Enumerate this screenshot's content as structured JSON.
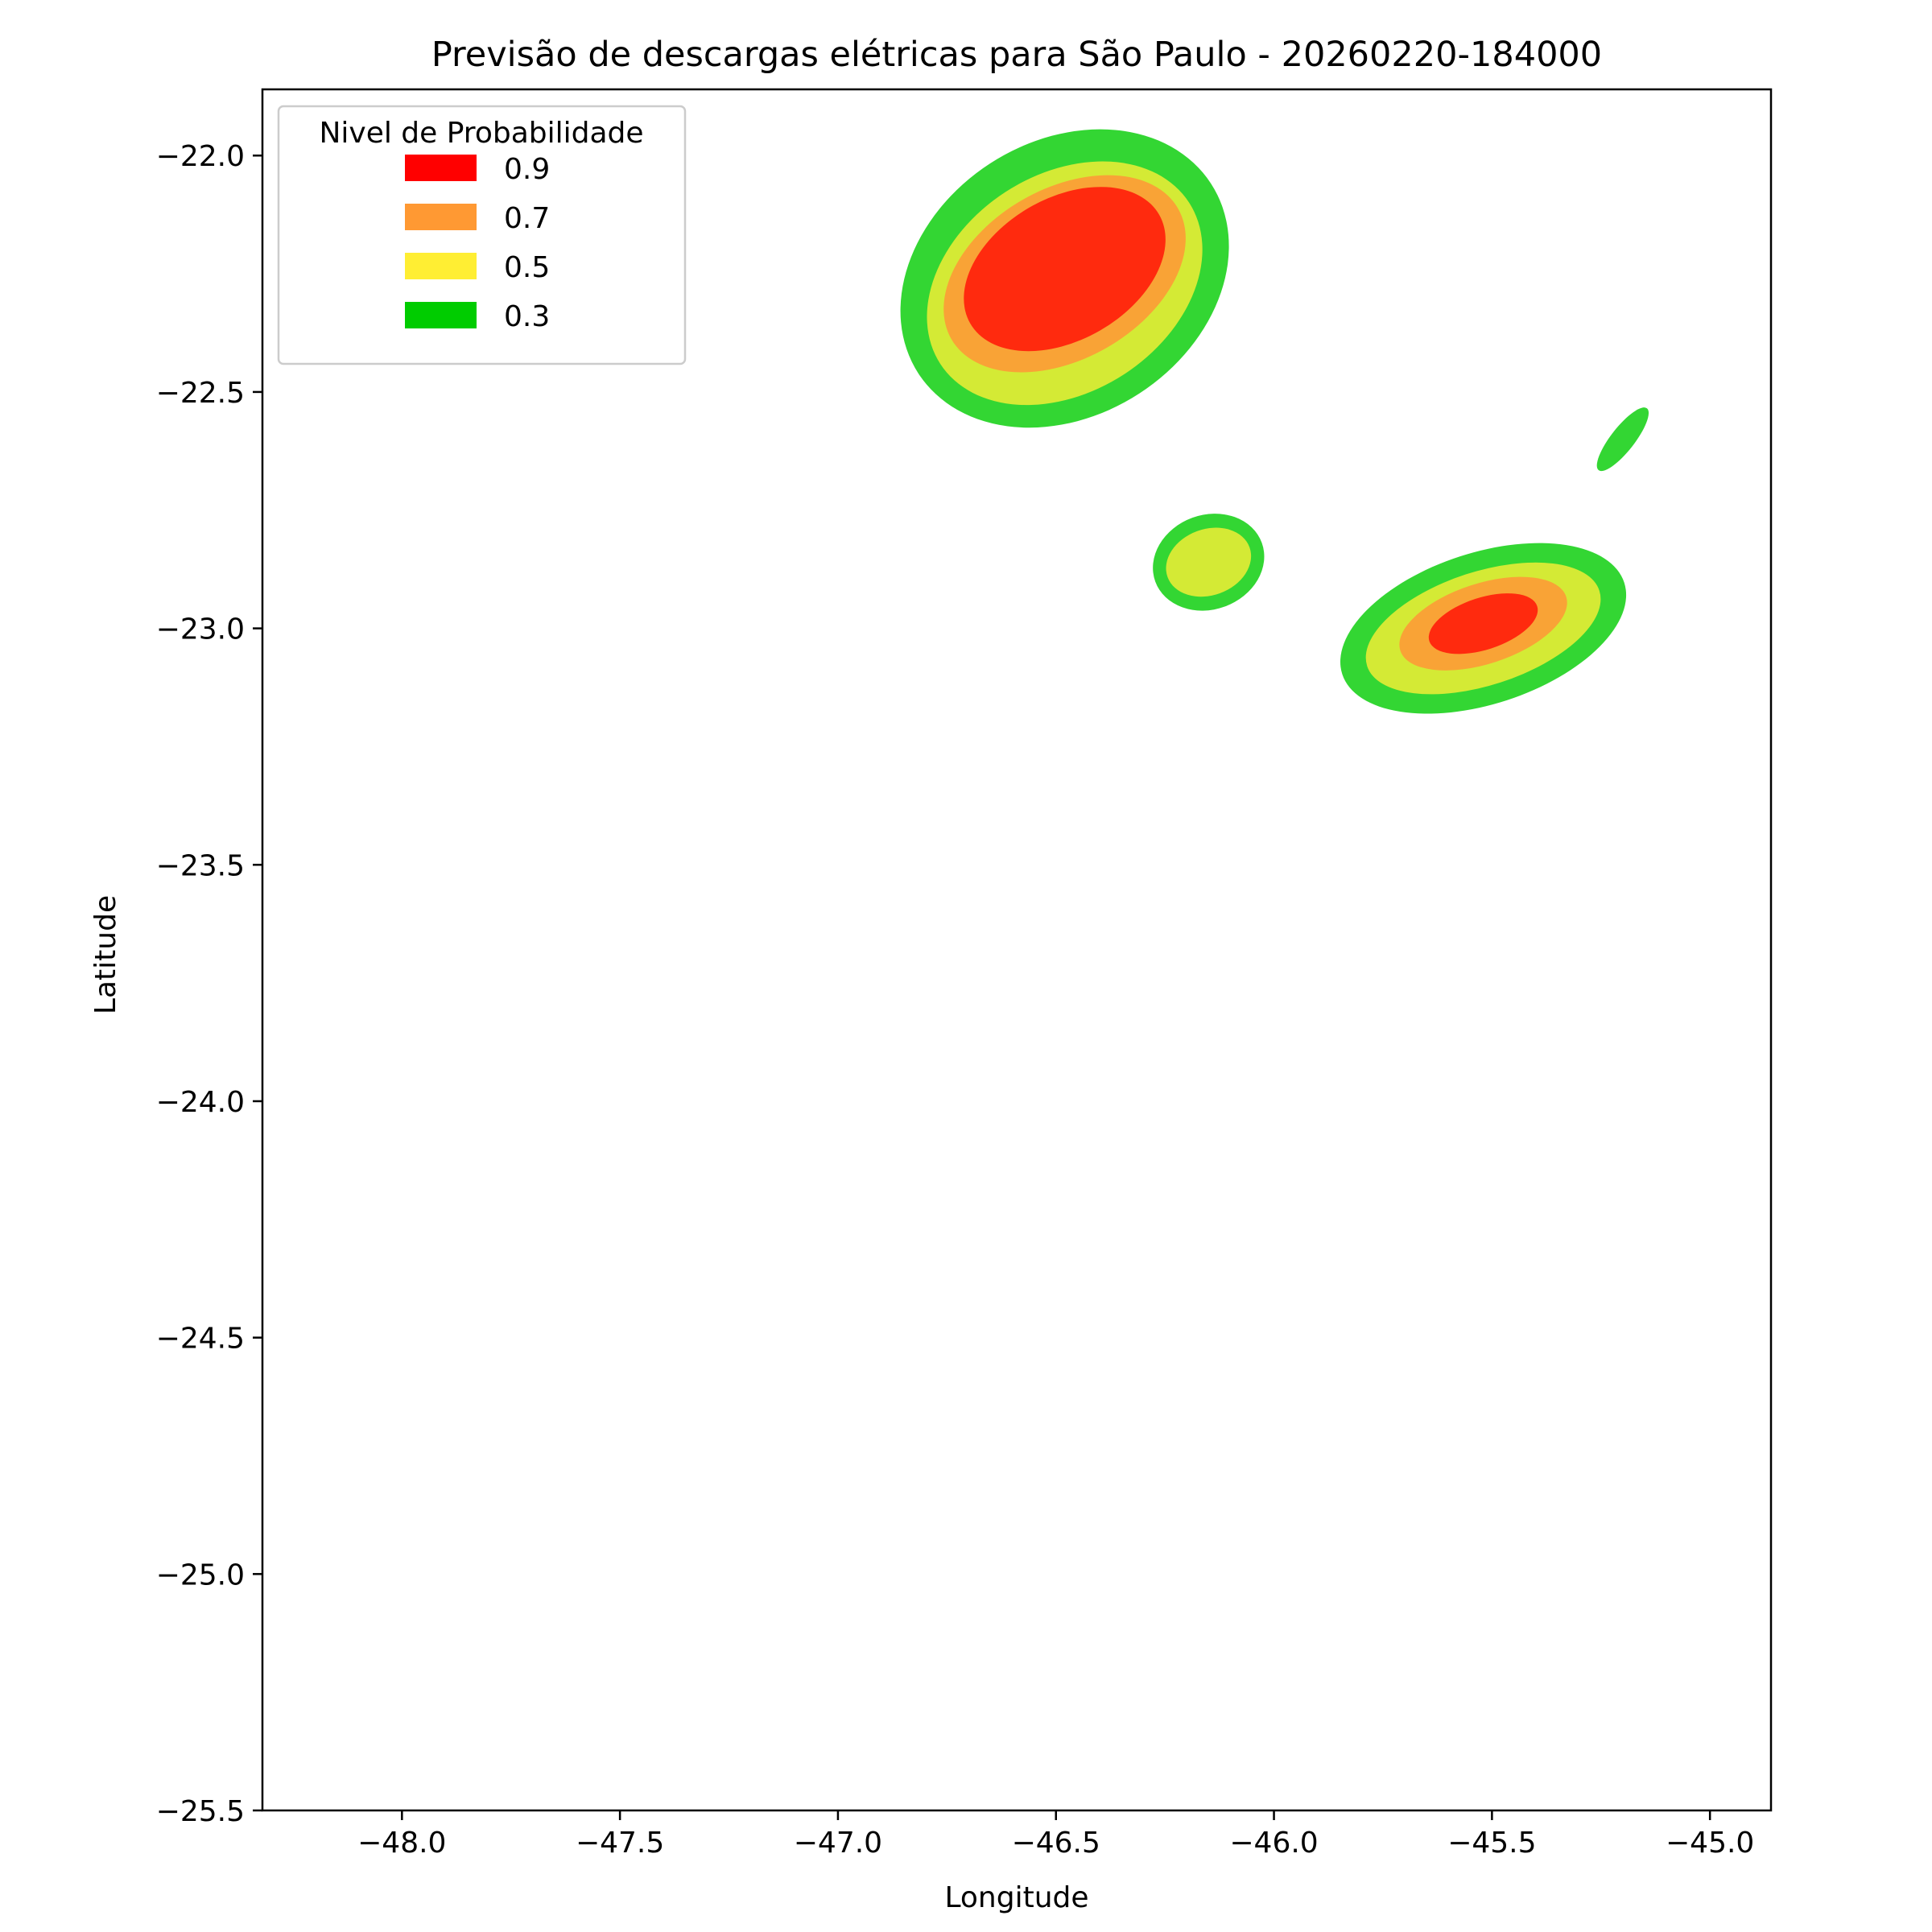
{
  "chart_data": {
    "type": "contour",
    "title": "Previsão de descargas elétricas para São Paulo - 20260220-184000",
    "xlabel": "Longitude",
    "ylabel": "Latitude",
    "xlim": [
      -48.32,
      -44.86
    ],
    "ylim": [
      -25.5,
      -21.86
    ],
    "xticks": [
      -48.0,
      -47.5,
      -47.0,
      -46.5,
      -46.0,
      -45.5,
      -45.0
    ],
    "xtick_labels": [
      "−48.0",
      "−47.5",
      "−47.0",
      "−46.5",
      "−46.0",
      "−45.5",
      "−45.0"
    ],
    "yticks": [
      -22.0,
      -22.5,
      -23.0,
      -23.5,
      -24.0,
      -24.5,
      -25.0,
      -25.5
    ],
    "ytick_labels": [
      "−22.0",
      "−22.5",
      "−23.0",
      "−23.5",
      "−24.0",
      "−24.5",
      "−25.0",
      "−25.5"
    ],
    "grid": false,
    "legend": {
      "title": "Nivel de Probabilidade",
      "placement": "top-left",
      "entries": [
        {
          "label": "0.9",
          "color": "#ff0000"
        },
        {
          "label": "0.7",
          "color": "#ff9933"
        },
        {
          "label": "0.5",
          "color": "#ffee33"
        },
        {
          "label": "0.3",
          "color": "#00cc00"
        }
      ]
    },
    "fill_colors": {
      "0.3": "#33d633",
      "0.5": "#d4ea35",
      "0.7": "#f9a336",
      "0.9": "#ff2a0e"
    },
    "cells": [
      {
        "name": "north-cell",
        "levels": [
          {
            "level": "0.3",
            "center": [
              -46.48,
              -22.26
            ],
            "rx": 0.4,
            "ry": 0.29,
            "angle": -33
          },
          {
            "level": "0.5",
            "center": [
              -46.48,
              -22.27
            ],
            "rx": 0.34,
            "ry": 0.23,
            "angle": -33
          },
          {
            "level": "0.7",
            "center": [
              -46.48,
              -22.25
            ],
            "rx": 0.3,
            "ry": 0.18,
            "angle": -30
          },
          {
            "level": "0.9",
            "center": [
              -46.48,
              -22.24
            ],
            "rx": 0.25,
            "ry": 0.15,
            "angle": -30
          }
        ]
      },
      {
        "name": "middle-cell",
        "levels": [
          {
            "level": "0.3",
            "center": [
              -46.15,
              -22.86
            ],
            "rx": 0.13,
            "ry": 0.1,
            "angle": -20
          },
          {
            "level": "0.5",
            "center": [
              -46.15,
              -22.86
            ],
            "rx": 0.1,
            "ry": 0.07,
            "angle": -20
          }
        ]
      },
      {
        "name": "southeast-cell",
        "levels": [
          {
            "level": "0.3",
            "center": [
              -45.52,
              -23.0
            ],
            "rx": 0.34,
            "ry": 0.16,
            "angle": -18
          },
          {
            "level": "0.5",
            "center": [
              -45.52,
              -23.0
            ],
            "rx": 0.28,
            "ry": 0.12,
            "angle": -18
          },
          {
            "level": "0.7",
            "center": [
              -45.52,
              -22.99
            ],
            "rx": 0.2,
            "ry": 0.085,
            "angle": -18
          },
          {
            "level": "0.9",
            "center": [
              -45.52,
              -22.99
            ],
            "rx": 0.13,
            "ry": 0.055,
            "angle": -18
          }
        ]
      },
      {
        "name": "small-east-cell",
        "levels": [
          {
            "level": "0.3",
            "center": [
              -45.2,
              -22.6
            ],
            "rx": 0.09,
            "ry": 0.025,
            "angle": -52
          }
        ]
      }
    ]
  }
}
